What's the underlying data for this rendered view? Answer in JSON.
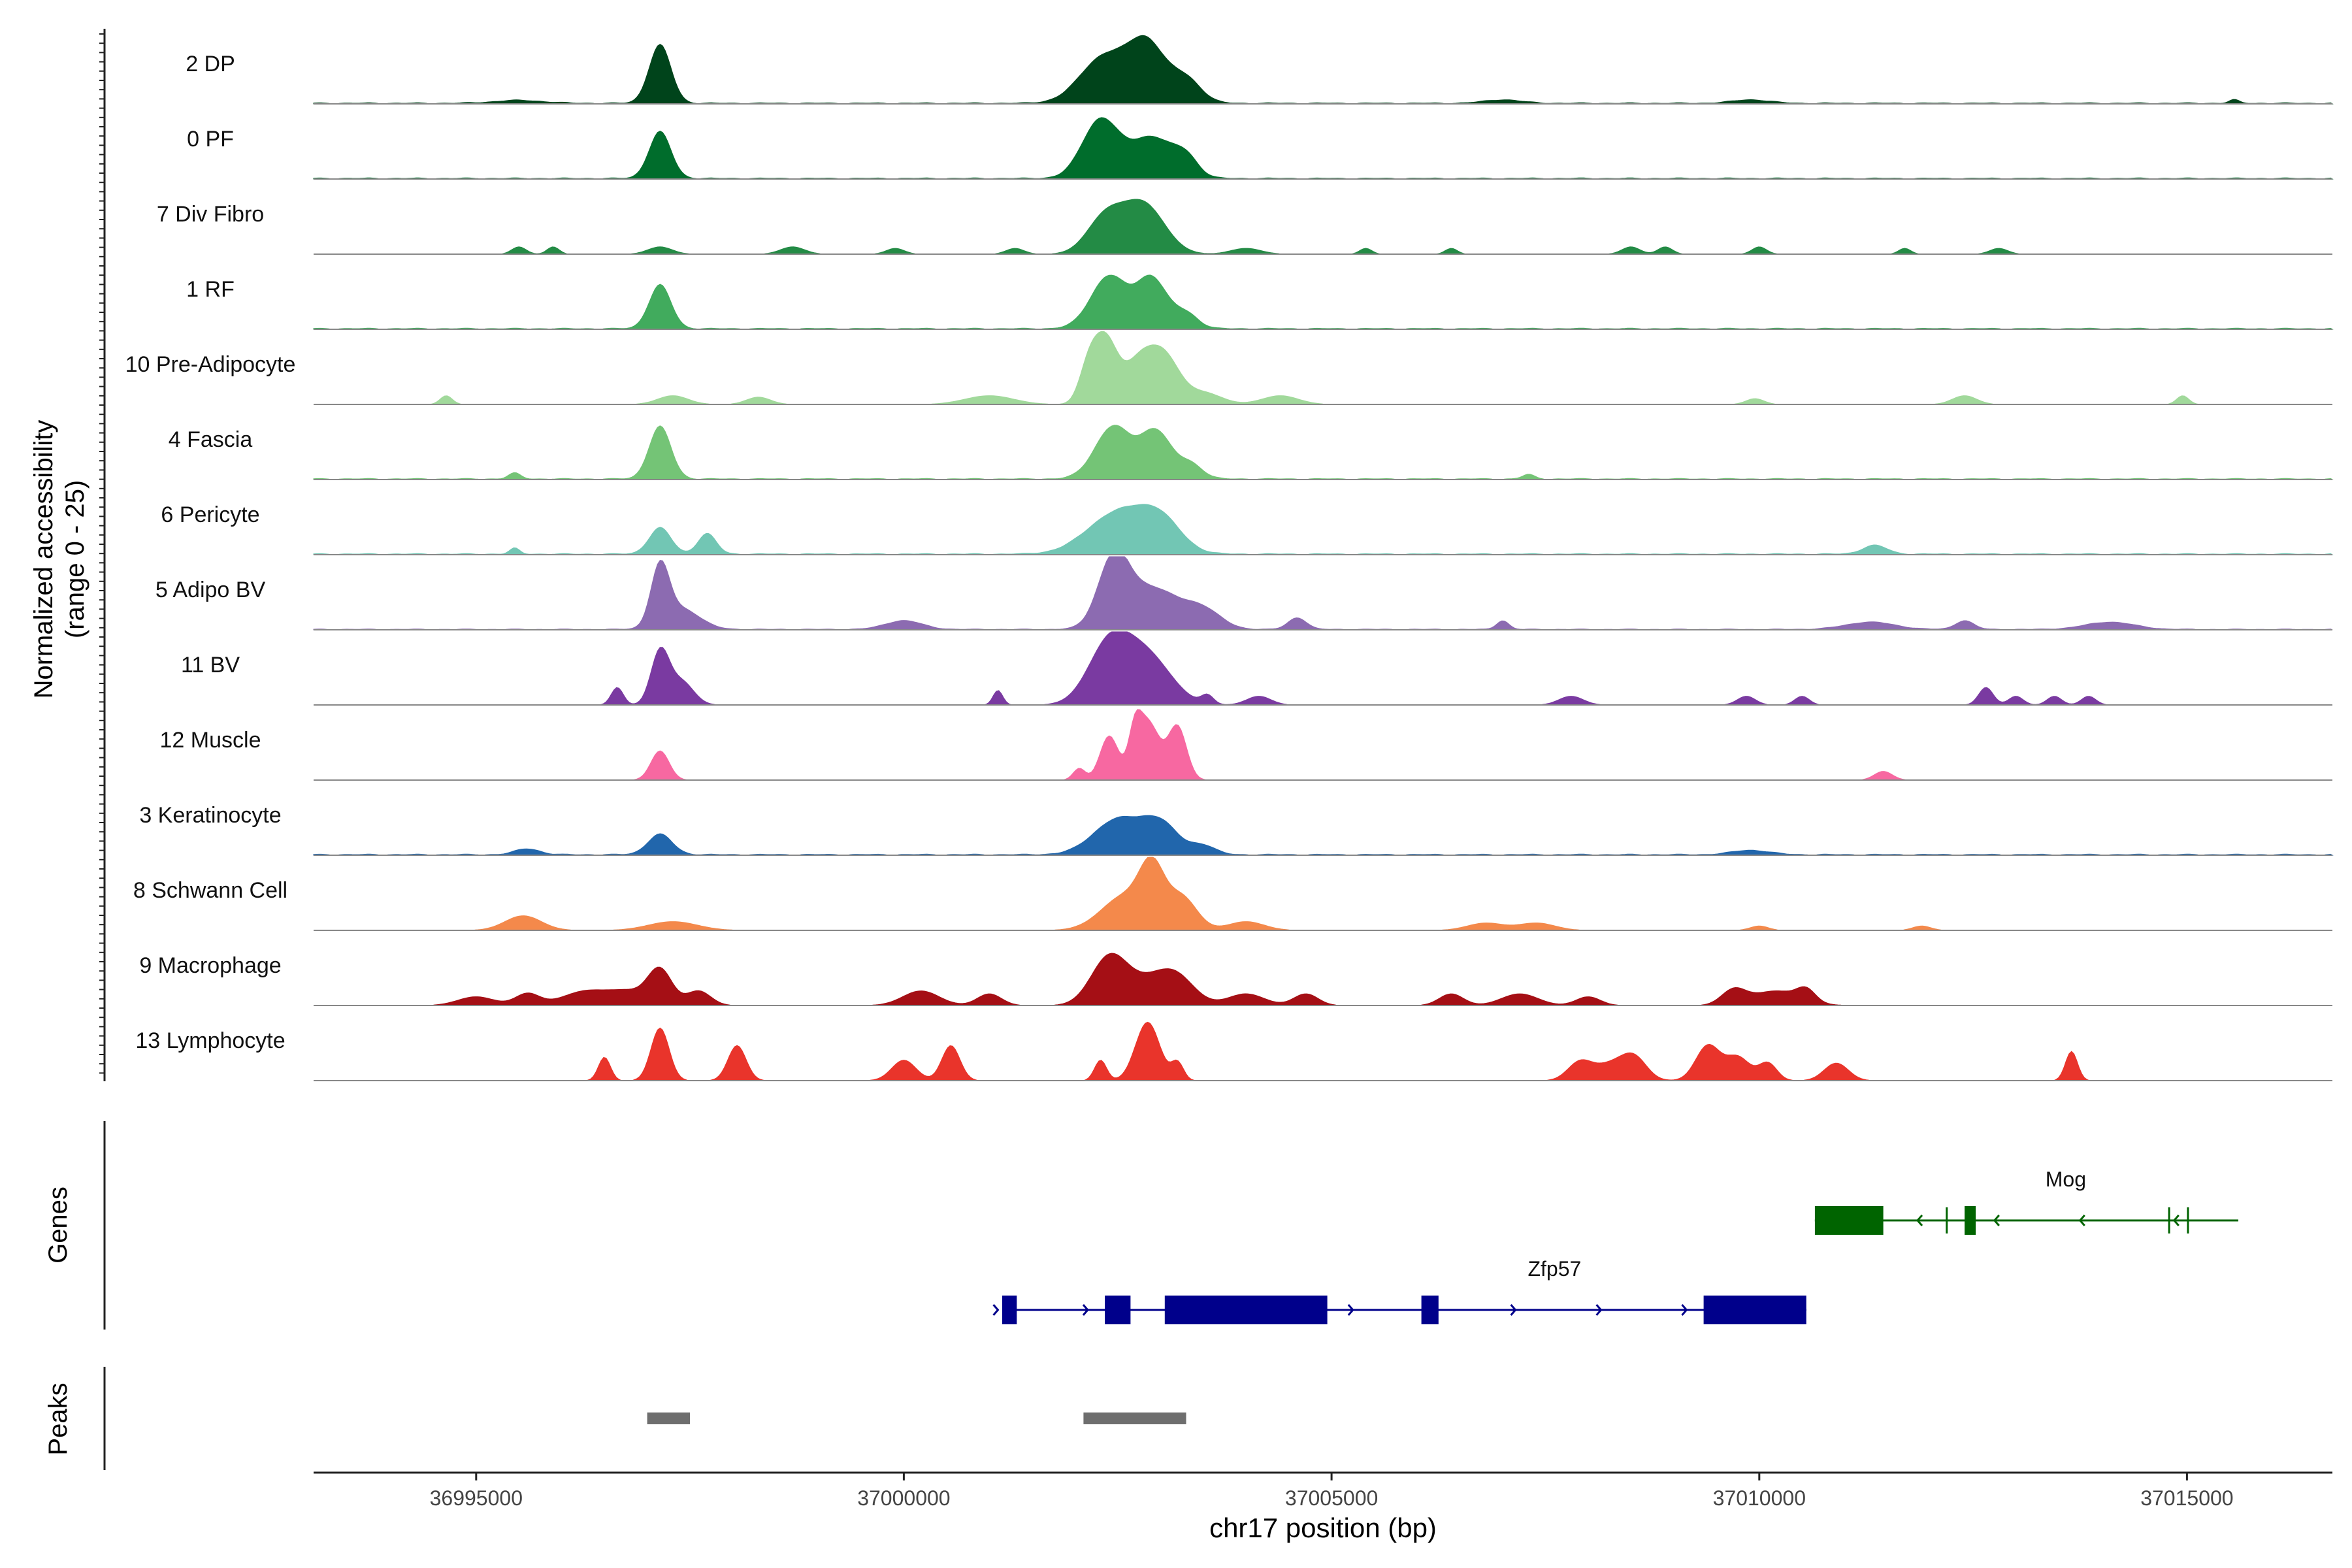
{
  "chart_data": {
    "type": "area",
    "title": "",
    "ylabel_line1": "Normalized accessibility",
    "ylabel_line2": "(range 0 - 25)",
    "xlabel": "chr17 position (bp)",
    "xlim": [
      36993100,
      37016700
    ],
    "ylim": [
      0,
      25
    ],
    "x_ticks": [
      {
        "value": 36995000,
        "label": "36995000"
      },
      {
        "value": 37000000,
        "label": "37000000"
      },
      {
        "value": 37005000,
        "label": "37005000"
      },
      {
        "value": 37010000,
        "label": "37010000"
      },
      {
        "value": 37015000,
        "label": "37015000"
      }
    ],
    "series": [
      {
        "name": "2 DP",
        "color": "#00441b",
        "base": 0.4,
        "peaks": [
          [
            36997150,
            180,
            20
          ],
          [
            37002350,
            400,
            16
          ],
          [
            37002850,
            300,
            19
          ],
          [
            37003300,
            250,
            8
          ],
          [
            36995500,
            400,
            1
          ],
          [
            37007000,
            300,
            1.2
          ],
          [
            37009900,
            300,
            1.2
          ],
          [
            37015550,
            80,
            1.2
          ]
        ]
      },
      {
        "name": "0 PF",
        "color": "#006d2c",
        "base": 0.4,
        "peaks": [
          [
            36997150,
            180,
            16
          ],
          [
            37002300,
            300,
            20
          ],
          [
            37002900,
            350,
            14
          ],
          [
            37003300,
            200,
            6
          ]
        ]
      },
      {
        "name": "7 Div Fibro",
        "color": "#238b45",
        "base": 0,
        "peaks": [
          [
            36995500,
            120,
            2.5
          ],
          [
            36995900,
            100,
            2.5
          ],
          [
            36997150,
            200,
            2.5
          ],
          [
            36998700,
            200,
            2.5
          ],
          [
            36999900,
            150,
            2
          ],
          [
            37001300,
            150,
            2
          ],
          [
            37002350,
            300,
            12
          ],
          [
            37002800,
            350,
            17
          ],
          [
            37004000,
            250,
            2
          ],
          [
            37005400,
            100,
            2
          ],
          [
            37006400,
            100,
            2
          ],
          [
            37008500,
            150,
            2.5
          ],
          [
            37008900,
            120,
            2.5
          ],
          [
            37010000,
            120,
            2.5
          ],
          [
            37011700,
            100,
            2
          ],
          [
            37012800,
            150,
            2
          ]
        ]
      },
      {
        "name": "1 RF",
        "color": "#41ab5d",
        "base": 0.4,
        "peaks": [
          [
            36997150,
            180,
            15
          ],
          [
            37002400,
            300,
            18
          ],
          [
            37002900,
            250,
            17
          ],
          [
            37003300,
            200,
            5
          ]
        ]
      },
      {
        "name": "10 Pre-Adipocyte",
        "color": "#a1d99b",
        "base": 0,
        "peaks": [
          [
            36994650,
            100,
            3
          ],
          [
            36997300,
            250,
            3
          ],
          [
            36998300,
            200,
            2.5
          ],
          [
            37001000,
            400,
            3
          ],
          [
            37002150,
            150,
            10
          ],
          [
            37002350,
            200,
            22
          ],
          [
            37002750,
            250,
            14
          ],
          [
            37003050,
            250,
            15
          ],
          [
            37003500,
            300,
            4
          ],
          [
            37004400,
            300,
            3
          ],
          [
            37009950,
            150,
            2
          ],
          [
            37012400,
            200,
            3
          ],
          [
            37014950,
            100,
            3
          ]
        ]
      },
      {
        "name": "4 Fascia",
        "color": "#74c476",
        "base": 0.4,
        "peaks": [
          [
            36997150,
            180,
            18
          ],
          [
            37002450,
            300,
            18
          ],
          [
            37002950,
            250,
            16
          ],
          [
            37003350,
            200,
            5
          ],
          [
            36995450,
            100,
            2
          ],
          [
            37007300,
            100,
            1.5
          ]
        ]
      },
      {
        "name": "6 Pericyte",
        "color": "#72c6b4",
        "base": 0.4,
        "peaks": [
          [
            36997150,
            180,
            9
          ],
          [
            36997700,
            150,
            7
          ],
          [
            37002500,
            500,
            14
          ],
          [
            37003000,
            350,
            10
          ],
          [
            37011350,
            200,
            3
          ],
          [
            36995450,
            80,
            2
          ]
        ]
      },
      {
        "name": "5 Adipo BV",
        "color": "#8c6bb1",
        "base": 0.3,
        "peaks": [
          [
            36997150,
            150,
            20
          ],
          [
            36997400,
            300,
            7
          ],
          [
            37000000,
            300,
            3
          ],
          [
            37002450,
            250,
            22
          ],
          [
            37002900,
            450,
            14
          ],
          [
            37003500,
            300,
            6
          ],
          [
            37004600,
            150,
            4
          ],
          [
            37007000,
            100,
            3
          ],
          [
            37011300,
            400,
            2.5
          ],
          [
            37012400,
            150,
            3
          ],
          [
            37014100,
            400,
            2.5
          ]
        ]
      },
      {
        "name": "11 BV",
        "color": "#7a3aa1",
        "base": 0,
        "peaks": [
          [
            36996650,
            100,
            6
          ],
          [
            36997150,
            150,
            18
          ],
          [
            36997400,
            200,
            8
          ],
          [
            37001100,
            80,
            5
          ],
          [
            37002400,
            350,
            20
          ],
          [
            37002850,
            400,
            16
          ],
          [
            37003550,
            100,
            3
          ],
          [
            37004150,
            200,
            3
          ],
          [
            37007800,
            200,
            3
          ],
          [
            37009850,
            150,
            3
          ],
          [
            37010500,
            120,
            3
          ],
          [
            37012650,
            120,
            6
          ],
          [
            37013000,
            120,
            3
          ],
          [
            37013450,
            120,
            3
          ],
          [
            37013850,
            120,
            3
          ]
        ]
      },
      {
        "name": "12 Muscle",
        "color": "#f768a1",
        "base": 0,
        "peaks": [
          [
            37002050,
            100,
            4
          ],
          [
            37002400,
            150,
            15
          ],
          [
            37002700,
            100,
            11
          ],
          [
            37002850,
            200,
            20
          ],
          [
            37003200,
            150,
            18
          ],
          [
            36997150,
            150,
            10
          ],
          [
            37011450,
            150,
            3
          ]
        ]
      },
      {
        "name": "3 Keratinocyte",
        "color": "#2166ac",
        "base": 0.4,
        "peaks": [
          [
            36997150,
            200,
            7
          ],
          [
            37002500,
            400,
            12
          ],
          [
            37003000,
            300,
            10
          ],
          [
            37003500,
            200,
            3
          ],
          [
            36995600,
            200,
            2
          ],
          [
            37009900,
            300,
            1.5
          ]
        ]
      },
      {
        "name": "8 Schwann Cell",
        "color": "#f4894b",
        "base": 0,
        "peaks": [
          [
            36995550,
            300,
            5
          ],
          [
            36997300,
            400,
            3
          ],
          [
            37002600,
            400,
            12
          ],
          [
            37002900,
            200,
            17
          ],
          [
            37003250,
            250,
            11
          ],
          [
            37004000,
            300,
            3
          ],
          [
            37006800,
            300,
            2.5
          ],
          [
            37007400,
            300,
            2.5
          ],
          [
            37010000,
            150,
            1.5
          ],
          [
            37011900,
            150,
            1.5
          ]
        ]
      },
      {
        "name": "9 Macrophage",
        "color": "#a50f15",
        "base": 0,
        "peaks": [
          [
            36995000,
            300,
            3
          ],
          [
            36995600,
            200,
            4
          ],
          [
            36996300,
            400,
            5
          ],
          [
            36996800,
            300,
            4
          ],
          [
            36997150,
            200,
            12
          ],
          [
            36997600,
            200,
            5
          ],
          [
            37000200,
            300,
            5
          ],
          [
            37001000,
            200,
            4
          ],
          [
            37002400,
            300,
            16
          ],
          [
            37002900,
            400,
            8
          ],
          [
            37003200,
            300,
            7
          ],
          [
            37004000,
            300,
            4
          ],
          [
            37004700,
            200,
            4
          ],
          [
            37006400,
            200,
            4
          ],
          [
            37007200,
            300,
            4
          ],
          [
            37008000,
            200,
            3
          ],
          [
            37009700,
            200,
            5
          ],
          [
            37010200,
            400,
            5
          ],
          [
            37010550,
            150,
            4
          ]
        ]
      },
      {
        "name": "13 Lymphocyte",
        "color": "#e9342b",
        "base": 0,
        "peaks": [
          [
            36996500,
            100,
            8
          ],
          [
            36997150,
            150,
            18
          ],
          [
            36998050,
            150,
            12
          ],
          [
            37000000,
            200,
            7
          ],
          [
            37000550,
            150,
            12
          ],
          [
            37002300,
            100,
            7
          ],
          [
            37002850,
            200,
            20
          ],
          [
            37003200,
            100,
            6
          ],
          [
            37007900,
            200,
            6
          ],
          [
            37008300,
            300,
            6
          ],
          [
            37008550,
            200,
            6
          ],
          [
            37009400,
            200,
            12
          ],
          [
            37009750,
            200,
            8
          ],
          [
            37010100,
            150,
            6
          ],
          [
            37010900,
            200,
            6
          ],
          [
            37013650,
            100,
            10
          ]
        ]
      }
    ],
    "genes_label": "Genes",
    "genes": [
      {
        "name": "Mog",
        "color": "#006400",
        "strand": "-",
        "start": 37010650,
        "end": 37015600,
        "exons": [
          [
            37010650,
            37011450
          ],
          [
            37012180,
            37012200
          ],
          [
            37012400,
            37012530
          ],
          [
            37014780,
            37014790
          ],
          [
            37015000,
            37015020
          ]
        ],
        "arrows": [
          37011850,
          37012750,
          37013750,
          37014850
        ]
      },
      {
        "name": "Zfp57",
        "color": "#00008b",
        "strand": "+",
        "start": 37001150,
        "end": 37010550,
        "exons": [
          [
            37001150,
            37001320
          ],
          [
            37002350,
            37002650
          ],
          [
            37003050,
            37004950
          ],
          [
            37006050,
            37006250
          ],
          [
            37009350,
            37010550
          ]
        ],
        "arrows": [
          37001100,
          37002150,
          37005250,
          37007150,
          37008150,
          37009150
        ]
      }
    ],
    "peaks_label": "Peaks",
    "peak_regions": [
      [
        36997000,
        36997500
      ],
      [
        37002100,
        37003300
      ]
    ],
    "peak_color": "#6e6e6e"
  }
}
